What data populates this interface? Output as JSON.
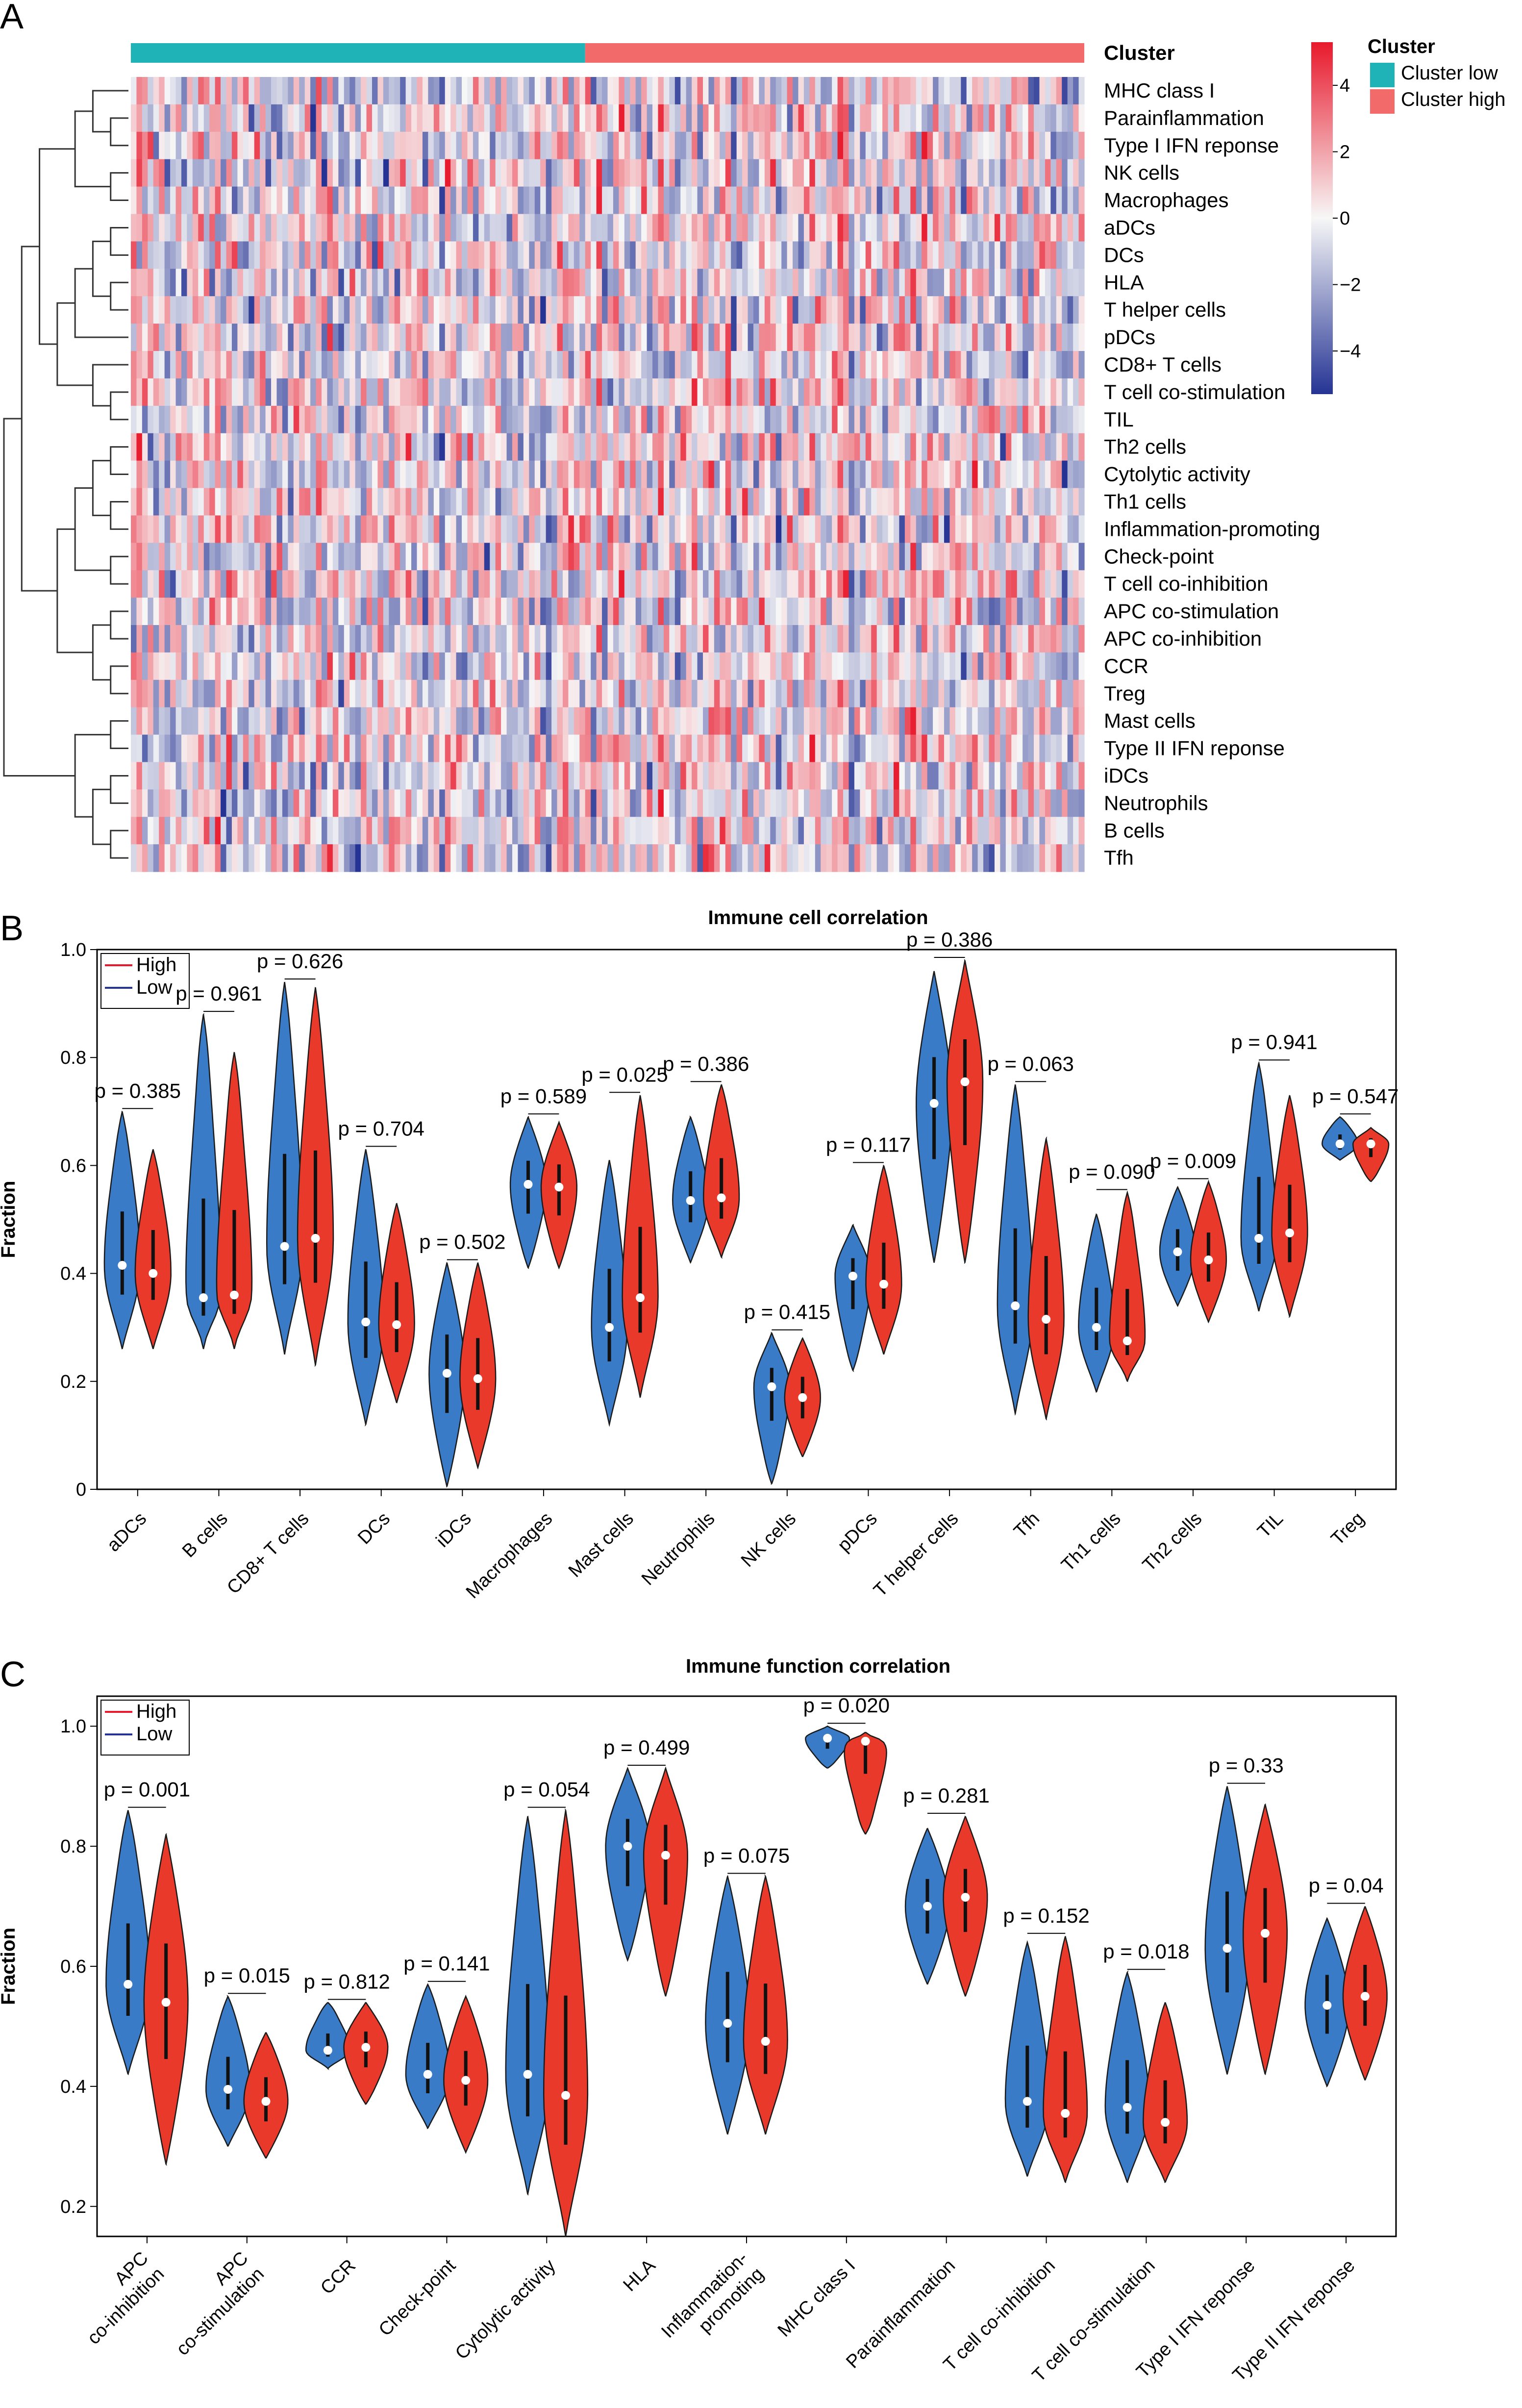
{
  "panels": {
    "A": "A",
    "B": "B",
    "C": "C"
  },
  "heatmap": {
    "cluster_bar_label": "Cluster",
    "legend_title": "Cluster",
    "legend": [
      {
        "label": "Cluster low",
        "color": "#1fb3b8"
      },
      {
        "label": "Cluster high",
        "color": "#f26a6a"
      }
    ],
    "colorbar_ticks": [
      "4",
      "2",
      "0",
      "−2",
      "−4"
    ],
    "colors": {
      "low": "#253494",
      "mid": "#f7f7f7",
      "high": "#e8192c"
    },
    "rows": [
      "MHC class I",
      "Parainflammation",
      "Type I IFN reponse",
      "NK cells",
      "Macrophages",
      "aDCs",
      "DCs",
      "HLA",
      "T helper cells",
      "pDCs",
      "CD8+ T cells",
      "T cell co-stimulation",
      "TIL",
      "Th2 cells",
      "Cytolytic activity",
      "Th1 cells",
      "Inflammation-promoting",
      "Check-point",
      "T cell co-inhibition",
      "APC co-stimulation",
      "APC co-inhibition",
      "CCR",
      "Treg",
      "Mast cells",
      "Type II IFN reponse",
      "iDCs",
      "Neutrophils",
      "B cells",
      "Tfh"
    ]
  },
  "chart_data": [
    {
      "type": "violin",
      "title": "Immune cell correlation",
      "ylabel": "Fraction",
      "ylim": [
        0,
        1.0
      ],
      "yticks": [
        "0",
        "0.2",
        "0.4",
        "0.6",
        "0.8",
        "1.0"
      ],
      "legend": [
        {
          "name": "High",
          "color": "#e8192c"
        },
        {
          "name": "Low",
          "color": "#253494"
        }
      ],
      "fill_low": "#3a7bc8",
      "fill_high": "#e8392b",
      "categories": [
        "aDCs",
        "B cells",
        "CD8+ T cells",
        "DCs",
        "iDCs",
        "Macrophages",
        "Mast cells",
        "Neutrophils",
        "NK cells",
        "pDCs",
        "T helper cells",
        "Tfh",
        "Th1 cells",
        "Th2 cells",
        "TIL",
        "Treg"
      ],
      "p_values": [
        "p = 0.385",
        "p = 0.961",
        "p = 0.626",
        "p = 0.704",
        "p = 0.502",
        "p = 0.589",
        "p = 0.025",
        "p = 0.386",
        "p = 0.415",
        "p = 0.117",
        "p = 0.386",
        "p = 0.063",
        "p = 0.090",
        "p = 0.009",
        "p = 0.941",
        "p = 0.547"
      ],
      "series": [
        {
          "name": "Low",
          "median": [
            0.415,
            0.355,
            0.45,
            0.31,
            0.215,
            0.565,
            0.3,
            0.535,
            0.19,
            0.395,
            0.715,
            0.34,
            0.3,
            0.44,
            0.465,
            0.64
          ],
          "min": [
            0.26,
            0.26,
            0.25,
            0.12,
            0.005,
            0.41,
            0.12,
            0.42,
            0.01,
            0.22,
            0.42,
            0.14,
            0.18,
            0.34,
            0.33,
            0.61
          ],
          "max": [
            0.7,
            0.88,
            0.94,
            0.63,
            0.42,
            0.69,
            0.61,
            0.69,
            0.29,
            0.49,
            0.96,
            0.75,
            0.51,
            0.56,
            0.79,
            0.69
          ]
        },
        {
          "name": "High",
          "median": [
            0.4,
            0.36,
            0.465,
            0.305,
            0.205,
            0.56,
            0.355,
            0.54,
            0.17,
            0.38,
            0.755,
            0.315,
            0.275,
            0.425,
            0.475,
            0.64
          ],
          "min": [
            0.26,
            0.26,
            0.23,
            0.16,
            0.04,
            0.41,
            0.17,
            0.43,
            0.06,
            0.25,
            0.42,
            0.13,
            0.2,
            0.31,
            0.32,
            0.57
          ],
          "max": [
            0.63,
            0.81,
            0.93,
            0.53,
            0.42,
            0.68,
            0.73,
            0.75,
            0.28,
            0.6,
            0.98,
            0.65,
            0.55,
            0.57,
            0.73,
            0.67
          ]
        }
      ]
    },
    {
      "type": "violin",
      "title": "Immune function correlation",
      "ylabel": "Fraction",
      "ylim": [
        0.15,
        1.05
      ],
      "yticks": [
        "0.2",
        "0.4",
        "0.6",
        "0.8",
        "1.0"
      ],
      "legend": [
        {
          "name": "High",
          "color": "#e8192c"
        },
        {
          "name": "Low",
          "color": "#253494"
        }
      ],
      "fill_low": "#3a7bc8",
      "fill_high": "#e8392b",
      "categories": [
        "APC\nco-inhibition",
        "APC\nco-stimulation",
        "CCR",
        "Check-point",
        "Cytolytic activity",
        "HLA",
        "Inflammation-\npromoting",
        "MHC class I",
        "Parainflammation",
        "T cell co-inhibition",
        "T cell co-stimulation",
        "Type I IFN reponse",
        "Type II IFN reponse"
      ],
      "p_values": [
        "p = 0.001",
        "p = 0.015",
        "p = 0.812",
        "p = 0.141",
        "p = 0.054",
        "p = 0.499",
        "p = 0.075",
        "p = 0.020",
        "p = 0.281",
        "p = 0.152",
        "p = 0.018",
        "p = 0.33",
        "p = 0.04"
      ],
      "series": [
        {
          "name": "Low",
          "median": [
            0.57,
            0.395,
            0.46,
            0.42,
            0.42,
            0.8,
            0.505,
            0.98,
            0.7,
            0.375,
            0.365,
            0.63,
            0.535
          ],
          "min": [
            0.42,
            0.3,
            0.43,
            0.33,
            0.22,
            0.61,
            0.32,
            0.93,
            0.57,
            0.25,
            0.24,
            0.42,
            0.4
          ],
          "max": [
            0.86,
            0.55,
            0.54,
            0.57,
            0.85,
            0.93,
            0.75,
            1.0,
            0.83,
            0.64,
            0.59,
            0.9,
            0.68
          ]
        },
        {
          "name": "High",
          "median": [
            0.54,
            0.375,
            0.465,
            0.41,
            0.385,
            0.785,
            0.475,
            0.975,
            0.715,
            0.355,
            0.34,
            0.655,
            0.55
          ],
          "min": [
            0.27,
            0.28,
            0.37,
            0.29,
            0.15,
            0.55,
            0.32,
            0.82,
            0.55,
            0.24,
            0.24,
            0.42,
            0.41
          ],
          "max": [
            0.82,
            0.49,
            0.54,
            0.55,
            0.86,
            0.93,
            0.75,
            0.99,
            0.85,
            0.65,
            0.54,
            0.87,
            0.7
          ]
        }
      ]
    }
  ]
}
